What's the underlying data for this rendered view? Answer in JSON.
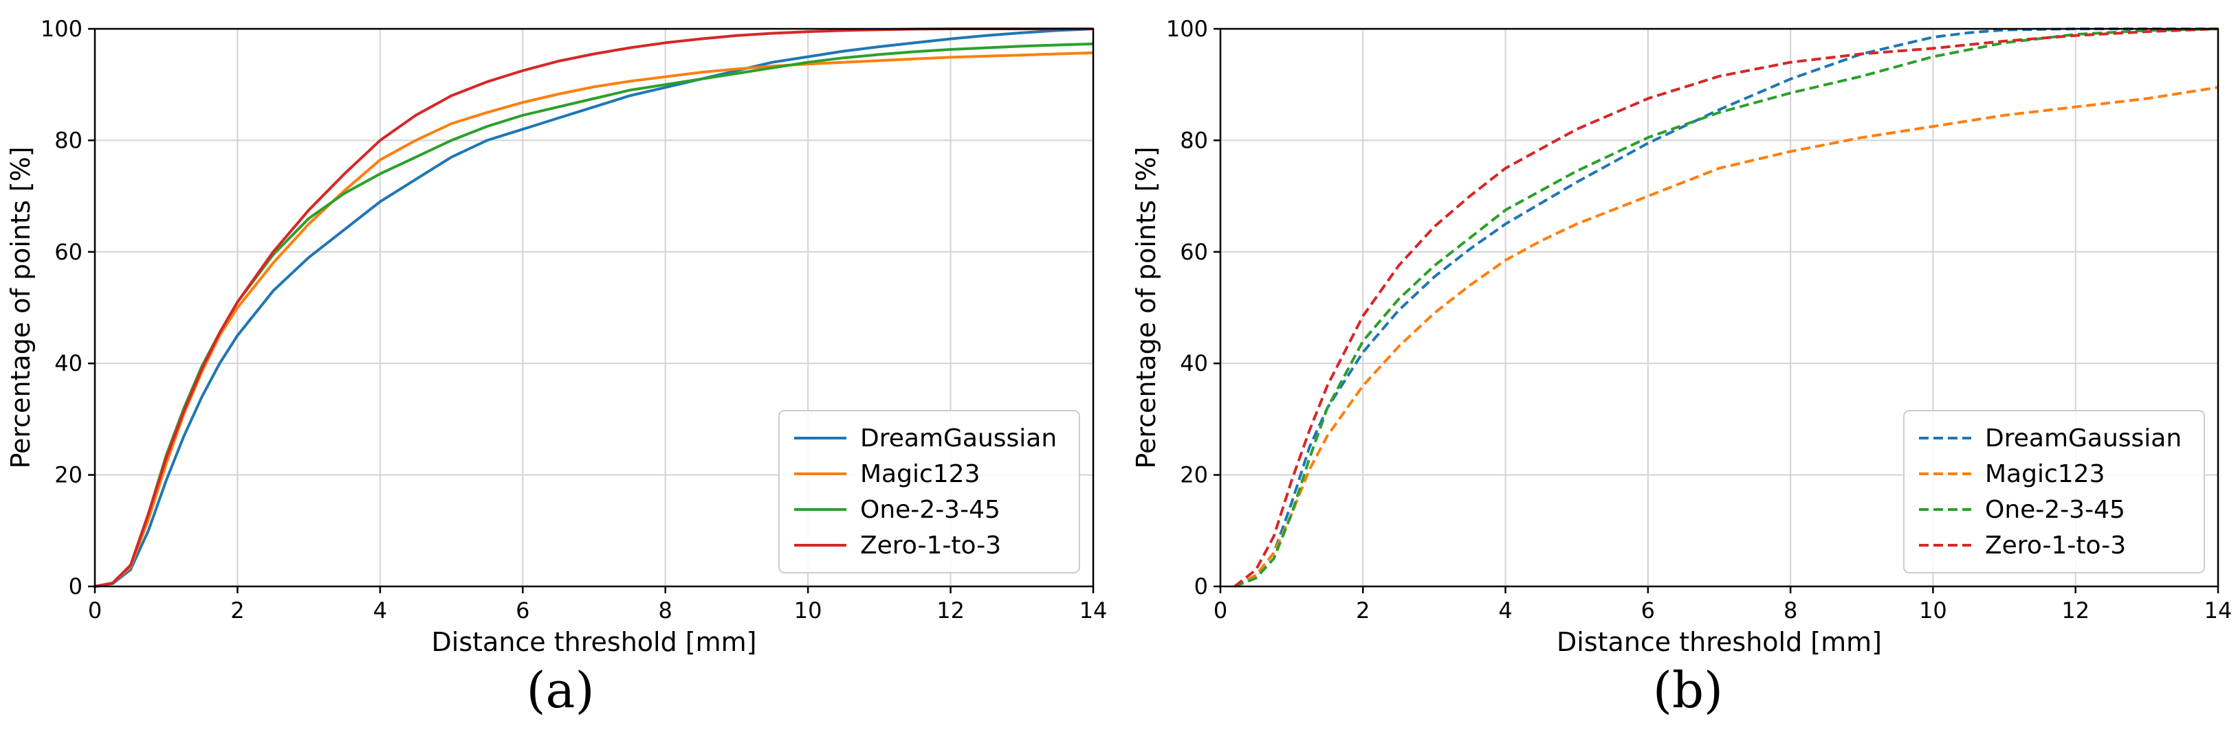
{
  "chart_data": [
    {
      "type": "line",
      "panel_label": "(a)",
      "xlabel": "Distance threshold [mm]",
      "ylabel": "Percentage of points [%]",
      "xlim": [
        0,
        14
      ],
      "ylim": [
        0,
        100
      ],
      "xticks": [
        0,
        2,
        4,
        6,
        8,
        10,
        12,
        14
      ],
      "yticks": [
        0,
        20,
        40,
        60,
        80,
        100
      ],
      "xtick_labels": [
        "0",
        "2",
        "4",
        "6",
        "8",
        "10",
        "12",
        "14"
      ],
      "ytick_labels": [
        "0",
        "20",
        "40",
        "60",
        "80",
        "100"
      ],
      "grid": true,
      "legend_position": "bottom-right",
      "line_style": "solid",
      "series": [
        {
          "name": "DreamGaussian",
          "color": "#1f77b4",
          "x": [
            0,
            0.25,
            0.5,
            0.75,
            1,
            1.25,
            1.5,
            1.75,
            2,
            2.5,
            3,
            3.5,
            4,
            4.5,
            5,
            5.5,
            6,
            6.5,
            7,
            7.5,
            8,
            8.5,
            9,
            9.5,
            10,
            10.5,
            11,
            11.5,
            12,
            12.5,
            13,
            13.5,
            14
          ],
          "y": [
            0,
            0.5,
            3,
            10,
            19,
            27,
            34,
            40,
            45,
            53,
            59,
            64,
            69,
            73,
            77,
            80,
            82,
            84,
            86,
            88,
            89.5,
            91,
            92.5,
            94,
            95,
            96,
            96.8,
            97.5,
            98.2,
            98.8,
            99.3,
            99.7,
            100
          ]
        },
        {
          "name": "Magic123",
          "color": "#ff7f0e",
          "x": [
            0,
            0.25,
            0.5,
            0.75,
            1,
            1.25,
            1.5,
            1.75,
            2,
            2.5,
            3,
            3.5,
            4,
            4.5,
            5,
            5.5,
            6,
            6.5,
            7,
            7.5,
            8,
            8.5,
            9,
            9.5,
            10,
            10.5,
            11,
            11.5,
            12,
            12.5,
            13,
            13.5,
            14
          ],
          "y": [
            0,
            0.6,
            3.5,
            12,
            22,
            31,
            38.5,
            45,
            50,
            58,
            65,
            71,
            76.5,
            80,
            83,
            85,
            86.8,
            88.3,
            89.6,
            90.6,
            91.4,
            92.2,
            92.8,
            93.3,
            93.7,
            94,
            94.3,
            94.6,
            94.9,
            95.1,
            95.3,
            95.5,
            95.7
          ]
        },
        {
          "name": "One-2-3-45",
          "color": "#2ca02c",
          "x": [
            0,
            0.25,
            0.5,
            0.75,
            1,
            1.25,
            1.5,
            1.75,
            2,
            2.5,
            3,
            3.5,
            4,
            4.5,
            5,
            5.5,
            6,
            6.5,
            7,
            7.5,
            8,
            8.5,
            9,
            9.5,
            10,
            10.5,
            11,
            11.5,
            12,
            12.5,
            13,
            13.5,
            14
          ],
          "y": [
            0,
            0.6,
            3.8,
            13,
            23.5,
            32,
            39.5,
            45.5,
            51,
            59.5,
            66,
            70.5,
            74,
            77,
            80,
            82.5,
            84.5,
            86,
            87.5,
            89,
            90,
            91,
            92,
            93,
            94,
            94.8,
            95.4,
            95.9,
            96.3,
            96.6,
            96.9,
            97.1,
            97.3
          ]
        },
        {
          "name": "Zero-1-to-3",
          "color": "#d62728",
          "x": [
            0,
            0.25,
            0.5,
            0.75,
            1,
            1.25,
            1.5,
            1.75,
            2,
            2.5,
            3,
            3.5,
            4,
            4.5,
            5,
            5.5,
            6,
            6.5,
            7,
            7.5,
            8,
            8.5,
            9,
            9.5,
            10,
            10.5,
            11,
            11.5,
            12,
            12.5,
            13,
            13.5,
            14
          ],
          "y": [
            0,
            0.6,
            3.8,
            13,
            23,
            31.5,
            39,
            45.5,
            51,
            60,
            67.5,
            74,
            80,
            84.5,
            88,
            90.5,
            92.5,
            94.2,
            95.5,
            96.6,
            97.5,
            98.2,
            98.8,
            99.2,
            99.5,
            99.7,
            99.85,
            99.95,
            100,
            100,
            100,
            100,
            100
          ]
        }
      ]
    },
    {
      "type": "line",
      "panel_label": "(b)",
      "xlabel": "Distance threshold [mm]",
      "ylabel": "Percentage of points [%]",
      "xlim": [
        0,
        14
      ],
      "ylim": [
        0,
        100
      ],
      "xticks": [
        0,
        2,
        4,
        6,
        8,
        10,
        12,
        14
      ],
      "yticks": [
        0,
        20,
        40,
        60,
        80,
        100
      ],
      "xtick_labels": [
        "0",
        "2",
        "4",
        "6",
        "8",
        "10",
        "12",
        "14"
      ],
      "ytick_labels": [
        "0",
        "20",
        "40",
        "60",
        "80",
        "100"
      ],
      "grid": true,
      "legend_position": "bottom-right",
      "line_style": "dashed",
      "series": [
        {
          "name": "DreamGaussian",
          "color": "#1f77b4",
          "x": [
            0.2,
            0.5,
            0.75,
            1,
            1.25,
            1.5,
            2,
            2.5,
            3,
            3.5,
            4,
            5,
            6,
            7,
            8,
            9,
            10,
            10.5,
            11,
            12,
            13,
            14
          ],
          "y": [
            0,
            2,
            6,
            15,
            25,
            32,
            42,
            49.5,
            55.5,
            60.5,
            65,
            72.5,
            79.5,
            85.5,
            91,
            95.5,
            98.5,
            99.3,
            99.8,
            100,
            100,
            100
          ]
        },
        {
          "name": "Magic123",
          "color": "#ff7f0e",
          "x": [
            0.2,
            0.5,
            0.75,
            1,
            1.25,
            1.5,
            2,
            2.5,
            3,
            3.5,
            4,
            4.5,
            5,
            6,
            7,
            8,
            9,
            10,
            11,
            12,
            13,
            14
          ],
          "y": [
            0,
            2,
            6,
            13,
            21,
            27,
            36,
            43,
            49,
            54,
            58.5,
            62,
            65,
            70,
            75,
            78,
            80.5,
            82.5,
            84.5,
            86,
            87.5,
            89.5
          ]
        },
        {
          "name": "One-2-3-45",
          "color": "#2ca02c",
          "x": [
            0.2,
            0.5,
            0.75,
            1,
            1.25,
            1.5,
            2,
            2.5,
            3,
            3.5,
            4,
            5,
            6,
            7,
            8,
            9,
            10,
            11,
            12,
            13,
            14
          ],
          "y": [
            0,
            1.5,
            5,
            13,
            23,
            32,
            44,
            51.5,
            57.5,
            62.5,
            67.5,
            74.5,
            80.5,
            85,
            88.5,
            91.5,
            95,
            97.5,
            99,
            99.7,
            100
          ]
        },
        {
          "name": "Zero-1-to-3",
          "color": "#d62728",
          "x": [
            0.2,
            0.5,
            0.75,
            1,
            1.25,
            1.5,
            2,
            2.5,
            3,
            3.5,
            4,
            5,
            6,
            7,
            8,
            9,
            10,
            11,
            12,
            13,
            14
          ],
          "y": [
            0,
            3,
            9,
            19,
            28,
            36,
            48.5,
            57.5,
            64.5,
            70,
            75,
            82,
            87.5,
            91.5,
            94,
            95.5,
            96.5,
            97.8,
            98.8,
            99.5,
            100
          ]
        }
      ]
    }
  ]
}
